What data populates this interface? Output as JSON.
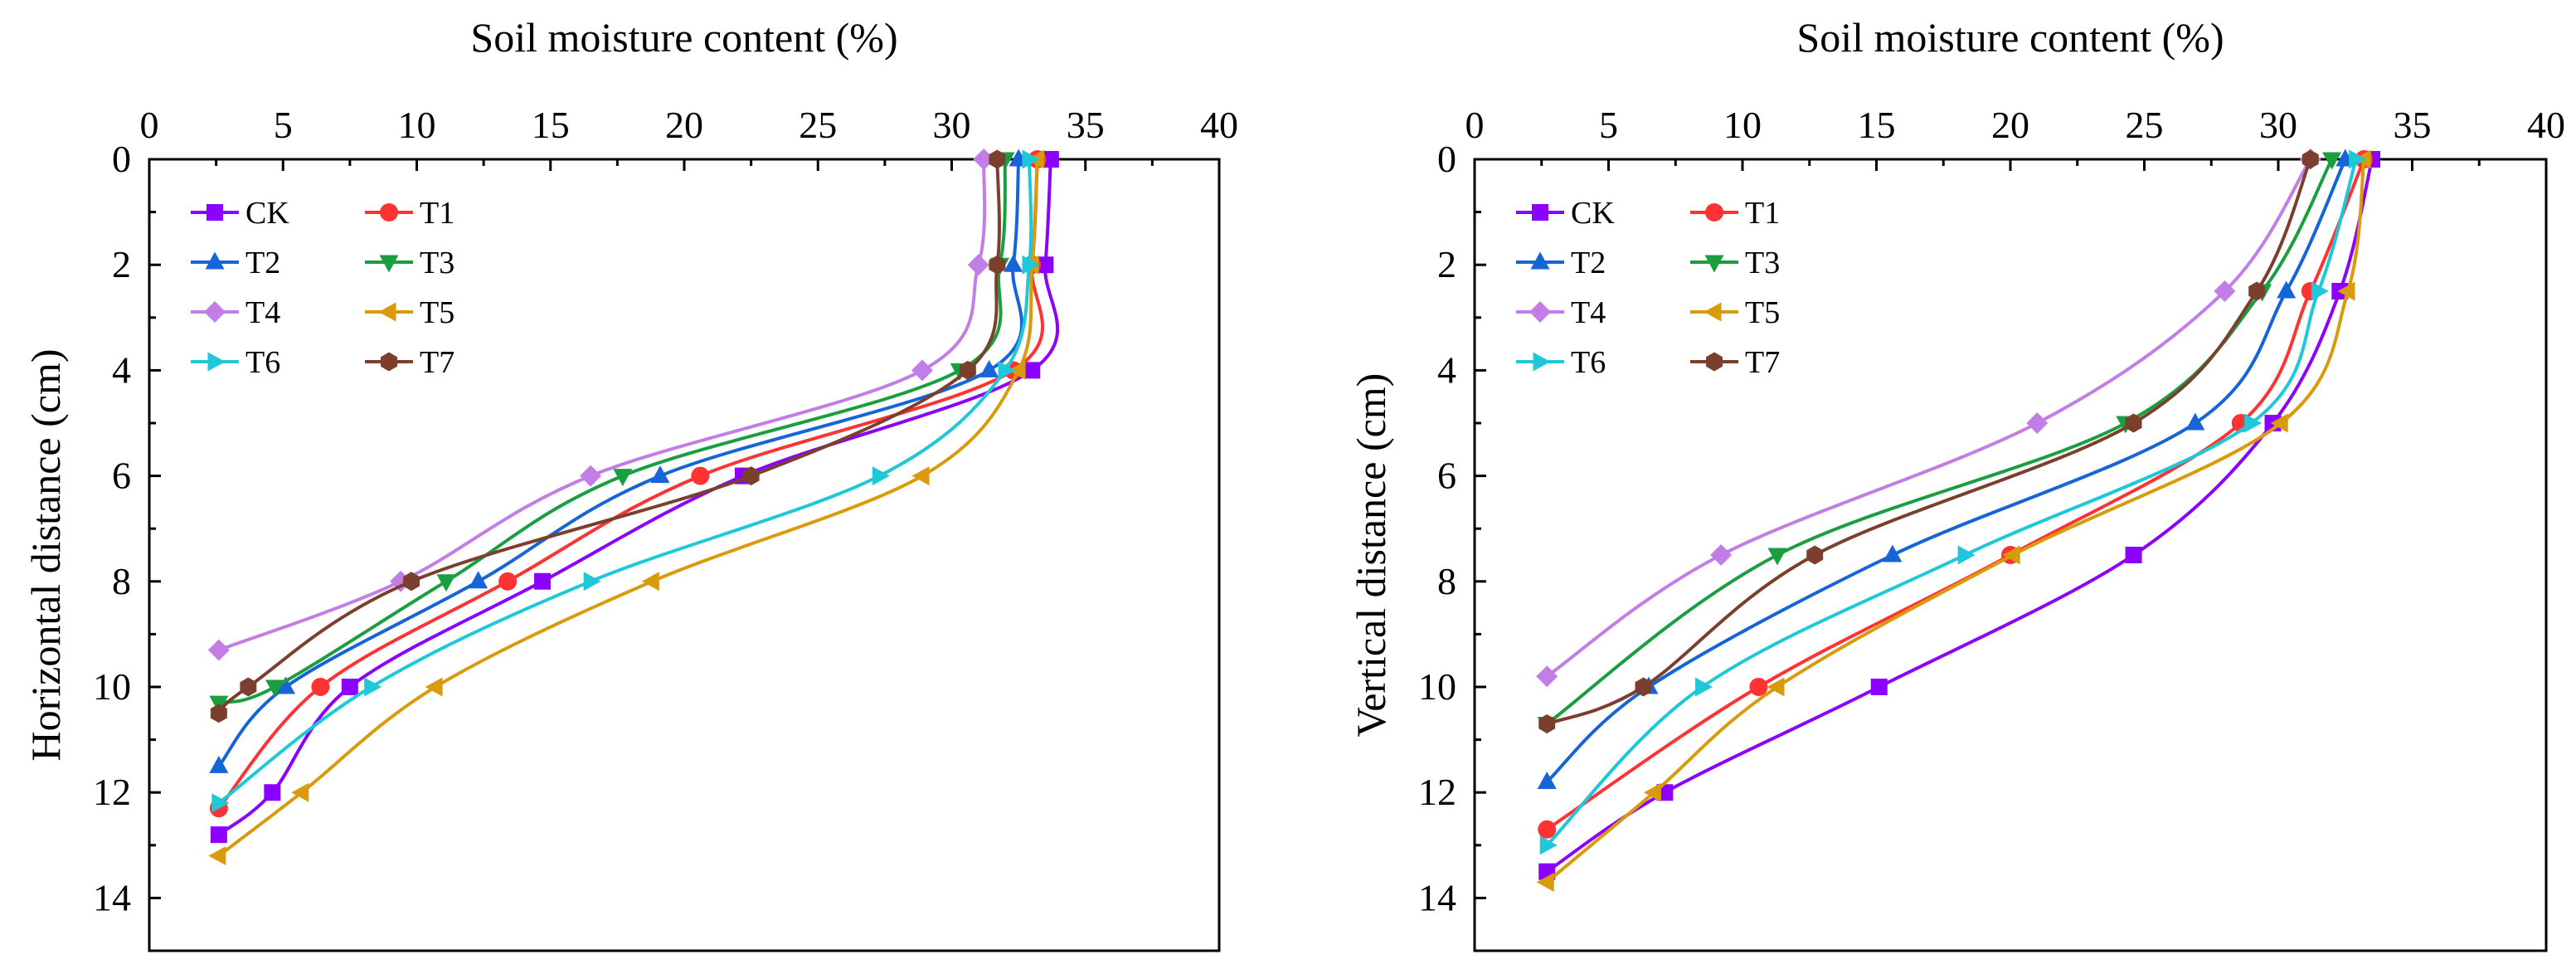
{
  "chart_data": [
    {
      "type": "line",
      "title": "Soil moisture content (%)",
      "xlabel": "Soil moisture content (%)",
      "ylabel": "Horizontal distance (cm)",
      "xlim": [
        0,
        40
      ],
      "ylim": [
        15,
        0
      ],
      "x_ticks": [
        "0",
        "5",
        "10",
        "15",
        "20",
        "25",
        "30",
        "35",
        "40"
      ],
      "y_ticks": [
        "0",
        "2",
        "4",
        "6",
        "8",
        "10",
        "12",
        "14"
      ],
      "legend": "top-left",
      "series": [
        {
          "name": "CK",
          "color": "#8B00FF",
          "marker": "square",
          "points": [
            [
              33.7,
              0
            ],
            [
              33.5,
              2
            ],
            [
              33.0,
              4
            ],
            [
              22.2,
              6
            ],
            [
              14.7,
              8
            ],
            [
              7.5,
              10
            ],
            [
              4.6,
              12
            ],
            [
              2.6,
              12.8
            ]
          ]
        },
        {
          "name": "T1",
          "color": "#FF3333",
          "marker": "circle",
          "points": [
            [
              33.2,
              0
            ],
            [
              33.0,
              2
            ],
            [
              32.3,
              4
            ],
            [
              20.6,
              6
            ],
            [
              13.4,
              8
            ],
            [
              6.4,
              10
            ],
            [
              2.6,
              12.3
            ]
          ]
        },
        {
          "name": "T2",
          "color": "#1565D8",
          "marker": "triangle-up",
          "points": [
            [
              32.5,
              0
            ],
            [
              32.3,
              2
            ],
            [
              31.4,
              4
            ],
            [
              19.1,
              6
            ],
            [
              12.3,
              8
            ],
            [
              5.1,
              10
            ],
            [
              2.6,
              11.5
            ]
          ]
        },
        {
          "name": "T3",
          "color": "#1A9E3F",
          "marker": "triangle-down",
          "points": [
            [
              32.0,
              0
            ],
            [
              31.8,
              2
            ],
            [
              30.3,
              4
            ],
            [
              17.7,
              6
            ],
            [
              11.1,
              8
            ],
            [
              4.7,
              10
            ],
            [
              2.6,
              10.3
            ]
          ]
        },
        {
          "name": "T4",
          "color": "#C27EE6",
          "marker": "diamond",
          "points": [
            [
              31.2,
              0
            ],
            [
              31.0,
              2
            ],
            [
              28.9,
              4
            ],
            [
              16.5,
              6
            ],
            [
              9.4,
              8
            ],
            [
              2.6,
              9.3
            ]
          ]
        },
        {
          "name": "T5",
          "color": "#D99A0C",
          "marker": "triangle-left",
          "points": [
            [
              33.2,
              0
            ],
            [
              33.0,
              2
            ],
            [
              32.5,
              4
            ],
            [
              28.9,
              6
            ],
            [
              18.8,
              8
            ],
            [
              10.7,
              10
            ],
            [
              5.7,
              12
            ],
            [
              2.6,
              13.2
            ]
          ]
        },
        {
          "name": "T6",
          "color": "#1FC8D8",
          "marker": "triangle-right",
          "points": [
            [
              32.9,
              0
            ],
            [
              32.9,
              2
            ],
            [
              32.0,
              4
            ],
            [
              27.3,
              6
            ],
            [
              16.5,
              8
            ],
            [
              8.3,
              10
            ],
            [
              2.6,
              12.2
            ]
          ]
        },
        {
          "name": "T7",
          "color": "#7B3F2E",
          "marker": "hexagon",
          "points": [
            [
              31.7,
              0
            ],
            [
              31.7,
              2
            ],
            [
              30.6,
              4
            ],
            [
              22.5,
              6
            ],
            [
              9.8,
              8
            ],
            [
              3.7,
              10
            ],
            [
              2.6,
              10.5
            ]
          ]
        }
      ]
    },
    {
      "type": "line",
      "title": "Soil moisture content (%)",
      "xlabel": "Soil moisture content (%)",
      "ylabel": "Vertical distance (cm)",
      "xlim": [
        0,
        40
      ],
      "ylim": [
        15,
        0
      ],
      "x_ticks": [
        "0",
        "5",
        "10",
        "15",
        "20",
        "25",
        "30",
        "35",
        "40"
      ],
      "y_ticks": [
        "0",
        "2",
        "4",
        "6",
        "8",
        "10",
        "12",
        "14"
      ],
      "legend": "top-left",
      "series": [
        {
          "name": "CK",
          "color": "#8B00FF",
          "marker": "square",
          "points": [
            [
              33.5,
              0
            ],
            [
              32.3,
              2.5
            ],
            [
              29.8,
              5
            ],
            [
              24.6,
              7.5
            ],
            [
              15.1,
              10
            ],
            [
              7.1,
              12
            ],
            [
              2.7,
              13.5
            ]
          ]
        },
        {
          "name": "T1",
          "color": "#FF3333",
          "marker": "circle",
          "points": [
            [
              33.2,
              0
            ],
            [
              31.2,
              2.5
            ],
            [
              28.6,
              5
            ],
            [
              20.0,
              7.5
            ],
            [
              10.6,
              10
            ],
            [
              2.7,
              12.7
            ]
          ]
        },
        {
          "name": "T2",
          "color": "#1565D8",
          "marker": "triangle-up",
          "points": [
            [
              32.5,
              0
            ],
            [
              30.3,
              2.5
            ],
            [
              26.9,
              5
            ],
            [
              15.6,
              7.5
            ],
            [
              6.5,
              10
            ],
            [
              2.7,
              11.8
            ]
          ]
        },
        {
          "name": "T3",
          "color": "#1A9E3F",
          "marker": "triangle-down",
          "points": [
            [
              32.0,
              0
            ],
            [
              29.4,
              2.5
            ],
            [
              24.3,
              5
            ],
            [
              11.3,
              7.5
            ],
            [
              2.7,
              10.7
            ]
          ]
        },
        {
          "name": "T4",
          "color": "#C27EE6",
          "marker": "diamond",
          "points": [
            [
              31.2,
              0
            ],
            [
              28.0,
              2.5
            ],
            [
              21.0,
              5
            ],
            [
              9.2,
              7.5
            ],
            [
              2.7,
              9.8
            ]
          ]
        },
        {
          "name": "T5",
          "color": "#D99A0C",
          "marker": "triangle-left",
          "points": [
            [
              33.2,
              0
            ],
            [
              32.6,
              2.5
            ],
            [
              30.1,
              5
            ],
            [
              20.1,
              7.5
            ],
            [
              11.3,
              10
            ],
            [
              6.7,
              12
            ],
            [
              2.7,
              13.7
            ]
          ]
        },
        {
          "name": "T6",
          "color": "#1FC8D8",
          "marker": "triangle-right",
          "points": [
            [
              32.9,
              0
            ],
            [
              31.5,
              2.5
            ],
            [
              29.0,
              5
            ],
            [
              18.3,
              7.5
            ],
            [
              8.5,
              10
            ],
            [
              2.7,
              13.0
            ]
          ]
        },
        {
          "name": "T7",
          "color": "#7B3F2E",
          "marker": "hexagon",
          "points": [
            [
              31.2,
              0
            ],
            [
              29.2,
              2.5
            ],
            [
              24.6,
              5
            ],
            [
              12.7,
              7.5
            ],
            [
              6.3,
              10
            ],
            [
              2.7,
              10.7
            ]
          ]
        }
      ]
    }
  ]
}
